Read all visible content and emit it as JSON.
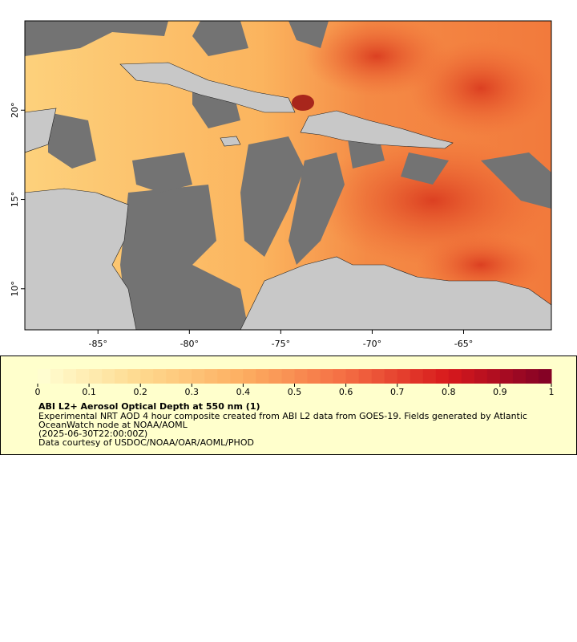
{
  "map": {
    "xlim": [
      -89,
      -60.2
    ],
    "ylim": [
      7.7,
      25
    ],
    "xticks": [
      {
        "value": -85,
        "label": "-85°"
      },
      {
        "value": -80,
        "label": "-80°"
      },
      {
        "value": -75,
        "label": "-75°"
      },
      {
        "value": -70,
        "label": "-70°"
      },
      {
        "value": -65,
        "label": "-65°"
      }
    ],
    "yticks": [
      {
        "value": 10,
        "label": "10°"
      },
      {
        "value": 15,
        "label": "15°"
      },
      {
        "value": 20,
        "label": "20°"
      }
    ]
  },
  "colorbar": {
    "range": [
      0,
      1
    ],
    "ticks": [
      0,
      0.1,
      0.2,
      0.3,
      0.4,
      0.5,
      0.6,
      0.7,
      0.8,
      0.9,
      1
    ],
    "colors": [
      "#ffffd4",
      "#fed98e",
      "#fdae61",
      "#f46d43",
      "#d7191c",
      "#7f0026"
    ]
  },
  "legend": {
    "title": "ABI L2+ Aerosol Optical Depth at 550 nm (1)",
    "lines": [
      "Experimental NRT AOD 4 hour composite created from ABI L2 data from GOES-19. Fields generated by Atlantic",
      "OceanWatch node at NOAA/AOML",
      "(2025-06-30T22:00:00Z)",
      "Data courtesy of USDOC/NOAA/OAR/AOML/PHOD"
    ]
  }
}
